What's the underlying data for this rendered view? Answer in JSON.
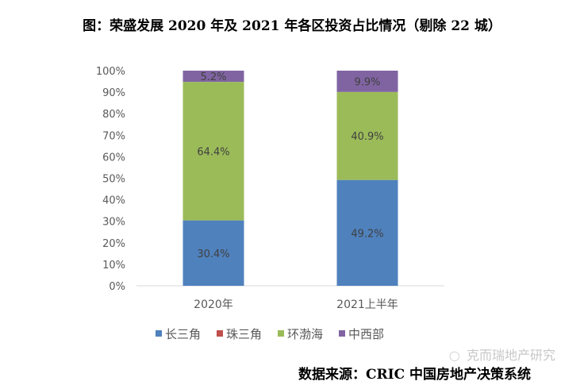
{
  "chart_data": {
    "type": "bar",
    "stacked": true,
    "title": "图：荣盛发展 2020 年及 2021 年各区投资占比情况（剔除 22 城）",
    "categories": [
      "2020年",
      "2021上半年"
    ],
    "series": [
      {
        "name": "长三角",
        "values": [
          30.4,
          49.2
        ],
        "color": "#4F81BD",
        "labels": [
          "30.4%",
          "49.2%"
        ]
      },
      {
        "name": "珠三角",
        "values": [
          0,
          0
        ],
        "color": "#C0504D",
        "labels": [
          "",
          ""
        ]
      },
      {
        "name": "环渤海",
        "values": [
          64.4,
          40.9
        ],
        "color": "#9BBB59",
        "labels": [
          "64.4%",
          "40.9%"
        ]
      },
      {
        "name": "中西部",
        "values": [
          5.2,
          9.9
        ],
        "color": "#8064A2",
        "labels": [
          "5.2%",
          "9.9%"
        ]
      }
    ],
    "ylim": [
      0,
      100
    ],
    "yticks": [
      "0%",
      "10%",
      "20%",
      "30%",
      "40%",
      "50%",
      "60%",
      "70%",
      "80%",
      "90%",
      "100%"
    ],
    "grid": false,
    "legend": "bottom",
    "xlabel": "",
    "ylabel": ""
  },
  "source": "数据来源：CRIC 中国房地产决策系统",
  "watermark": "克而瑞地产研究"
}
